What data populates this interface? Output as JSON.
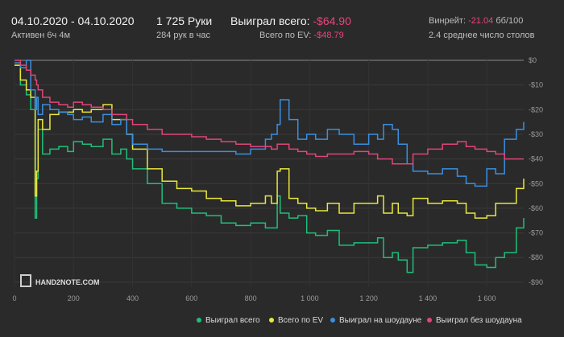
{
  "header": {
    "date_range": "04.10.2020 - 04.10.2020",
    "active": "Активен 6ч 4м",
    "hands": "1 725 Руки",
    "hands_rate": "284 рук в час",
    "won_label": "Выиграл всего:",
    "won_value": "-$64.90",
    "ev_label": "Всего по EV:",
    "ev_value": "-$48.79",
    "winrate_label": "Винрейт:",
    "winrate_value": "-21.04",
    "winrate_unit": "бб/100",
    "tables": "2.4 среднее число столов"
  },
  "logo": {
    "text": "HAND2NOTE.COM"
  },
  "chart_data": {
    "type": "line",
    "x_ticks": [
      0,
      200,
      400,
      600,
      800,
      1000,
      1200,
      1400,
      1600
    ],
    "x_tick_labels": [
      "0",
      "200",
      "400",
      "600",
      "800",
      "1 000",
      "1 200",
      "1 400",
      "1 600"
    ],
    "xlim": [
      0,
      1725
    ],
    "y_ticks": [
      0,
      -10,
      -20,
      -30,
      -40,
      -50,
      -60,
      -70,
      -80,
      -90
    ],
    "y_tick_labels": [
      "$0",
      "-$10",
      "-$20",
      "-$30",
      "-$40",
      "-$50",
      "-$60",
      "-$70",
      "-$80",
      "-$90"
    ],
    "ylim": [
      -92,
      0
    ],
    "series": [
      {
        "name": "Выиграл всего",
        "color": "#1fbf7a",
        "x": [
          0,
          20,
          40,
          55,
          70,
          75,
          80,
          95,
          120,
          150,
          180,
          200,
          230,
          260,
          300,
          330,
          360,
          380,
          400,
          450,
          500,
          550,
          600,
          650,
          700,
          750,
          800,
          850,
          870,
          890,
          900,
          930,
          960,
          990,
          1020,
          1060,
          1100,
          1150,
          1200,
          1230,
          1250,
          1280,
          1300,
          1330,
          1350,
          1400,
          1450,
          1500,
          1530,
          1560,
          1600,
          1630,
          1660,
          1700,
          1725
        ],
        "y": [
          -2,
          -10,
          -14,
          -20,
          -64,
          -48,
          -28,
          -38,
          -36,
          -35,
          -37,
          -33,
          -34,
          -35,
          -32,
          -38,
          -36,
          -40,
          -44,
          -50,
          -58,
          -60,
          -62,
          -63,
          -66,
          -67,
          -66,
          -68,
          -68,
          -55,
          -62,
          -64,
          -63,
          -70,
          -71,
          -69,
          -75,
          -74,
          -74,
          -72,
          -80,
          -78,
          -81,
          -86,
          -76,
          -75,
          -74,
          -73,
          -78,
          -83,
          -84,
          -80,
          -78,
          -68,
          -64
        ]
      },
      {
        "name": "Всего по EV",
        "color": "#e8e83a",
        "x": [
          0,
          20,
          40,
          55,
          70,
          75,
          80,
          95,
          120,
          150,
          180,
          200,
          230,
          260,
          300,
          330,
          360,
          380,
          400,
          450,
          500,
          550,
          600,
          650,
          700,
          750,
          800,
          850,
          870,
          890,
          900,
          930,
          960,
          990,
          1020,
          1060,
          1100,
          1150,
          1200,
          1230,
          1250,
          1280,
          1300,
          1330,
          1350,
          1400,
          1450,
          1500,
          1530,
          1560,
          1600,
          1630,
          1660,
          1700,
          1725
        ],
        "y": [
          -2,
          -8,
          -12,
          -15,
          -55,
          -45,
          -24,
          -28,
          -22,
          -21,
          -21,
          -20,
          -21,
          -20,
          -18,
          -24,
          -24,
          -30,
          -36,
          -44,
          -49,
          -52,
          -53,
          -56,
          -57,
          -59,
          -58,
          -55,
          -58,
          -45,
          -44,
          -56,
          -58,
          -60,
          -61,
          -58,
          -62,
          -58,
          -58,
          -55,
          -62,
          -58,
          -62,
          -63,
          -56,
          -58,
          -57,
          -58,
          -62,
          -64,
          -63,
          -58,
          -58,
          -52,
          -48
        ]
      },
      {
        "name": "Выиграл на шоудауне",
        "color": "#3b8fe0",
        "x": [
          0,
          20,
          40,
          55,
          70,
          75,
          80,
          95,
          120,
          150,
          180,
          200,
          230,
          260,
          300,
          330,
          360,
          380,
          400,
          450,
          500,
          550,
          600,
          650,
          700,
          750,
          800,
          850,
          870,
          890,
          900,
          930,
          960,
          990,
          1020,
          1060,
          1100,
          1150,
          1200,
          1230,
          1250,
          1280,
          1300,
          1330,
          1350,
          1400,
          1450,
          1500,
          1530,
          1560,
          1600,
          1630,
          1660,
          1700,
          1725
        ],
        "y": [
          -1,
          -3,
          0,
          -12,
          -20,
          -15,
          -22,
          -18,
          -20,
          -21,
          -22,
          -24,
          -23,
          -25,
          -22,
          -26,
          -24,
          -30,
          -34,
          -36,
          -37,
          -37,
          -37,
          -37,
          -37,
          -38,
          -36,
          -32,
          -30,
          -26,
          -16,
          -24,
          -32,
          -30,
          -32,
          -28,
          -30,
          -34,
          -30,
          -32,
          -26,
          -28,
          -34,
          -42,
          -45,
          -46,
          -44,
          -47,
          -50,
          -51,
          -44,
          -46,
          -32,
          -28,
          -25
        ]
      },
      {
        "name": "Выиграл без шоудауна",
        "color": "#e0457a",
        "x": [
          0,
          20,
          40,
          55,
          70,
          75,
          80,
          95,
          120,
          150,
          180,
          200,
          230,
          260,
          300,
          330,
          360,
          380,
          400,
          450,
          500,
          550,
          600,
          650,
          700,
          750,
          800,
          850,
          870,
          890,
          900,
          930,
          960,
          990,
          1020,
          1060,
          1100,
          1150,
          1200,
          1230,
          1250,
          1280,
          1300,
          1330,
          1350,
          1400,
          1450,
          1500,
          1530,
          1560,
          1600,
          1630,
          1660,
          1700,
          1725
        ],
        "y": [
          0,
          -2,
          -4,
          -6,
          -8,
          -10,
          -12,
          -15,
          -17,
          -18,
          -19,
          -17,
          -18,
          -19,
          -20,
          -22,
          -22,
          -24,
          -26,
          -28,
          -30,
          -30,
          -31,
          -32,
          -33,
          -34,
          -35,
          -35,
          -36,
          -34,
          -34,
          -36,
          -37,
          -38,
          -39,
          -38,
          -38,
          -37,
          -38,
          -40,
          -40,
          -42,
          -42,
          -42,
          -38,
          -36,
          -34,
          -33,
          -35,
          -36,
          -37,
          -38,
          -40,
          -40,
          -40
        ]
      }
    ]
  }
}
